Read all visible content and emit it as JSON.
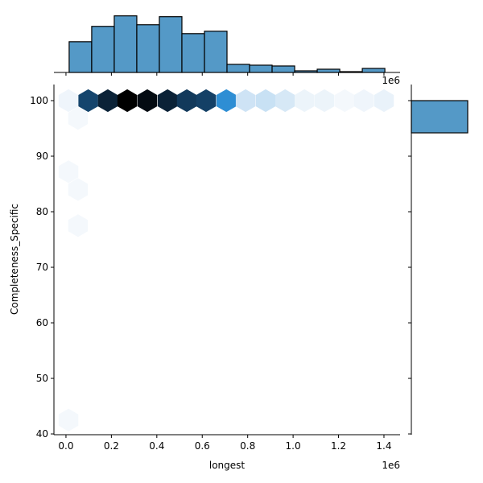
{
  "chart_data": {
    "type": "hexbin_jointplot",
    "xlabel": "longest",
    "ylabel": "Completeness_Specific",
    "x_offset_label": "1e6",
    "top_offset_label": "1e6",
    "xlim": [
      -0.053,
      1.471
    ],
    "ylim": [
      39.86,
      102.9
    ],
    "x_ticks": [
      "0.0",
      "0.2",
      "0.4",
      "0.6",
      "0.8",
      "1.0",
      "1.2",
      "1.4"
    ],
    "x_tick_values": [
      0.0,
      0.2,
      0.4,
      0.6,
      0.8,
      1.0,
      1.2,
      1.4
    ],
    "y_ticks": [
      "40",
      "50",
      "60",
      "70",
      "80",
      "90",
      "100"
    ],
    "y_tick_values": [
      40,
      50,
      60,
      70,
      80,
      90,
      100
    ],
    "grid": false,
    "hex_color": "#2b8cd3",
    "hexbins": [
      {
        "x": 0.011,
        "y": 100,
        "count": 3
      },
      {
        "x": 0.098,
        "y": 100,
        "count": 70
      },
      {
        "x": 0.184,
        "y": 100,
        "count": 85
      },
      {
        "x": 0.27,
        "y": 100,
        "count": 100
      },
      {
        "x": 0.358,
        "y": 100,
        "count": 95
      },
      {
        "x": 0.447,
        "y": 100,
        "count": 85
      },
      {
        "x": 0.532,
        "y": 100,
        "count": 75
      },
      {
        "x": 0.617,
        "y": 100,
        "count": 72
      },
      {
        "x": 0.706,
        "y": 100,
        "count": 45
      },
      {
        "x": 0.791,
        "y": 100,
        "count": 15
      },
      {
        "x": 0.879,
        "y": 100,
        "count": 17
      },
      {
        "x": 0.965,
        "y": 100,
        "count": 12
      },
      {
        "x": 1.05,
        "y": 100,
        "count": 4
      },
      {
        "x": 1.138,
        "y": 100,
        "count": 4
      },
      {
        "x": 1.227,
        "y": 100,
        "count": 1
      },
      {
        "x": 1.312,
        "y": 100,
        "count": 3
      },
      {
        "x": 1.4,
        "y": 100,
        "count": 5
      },
      {
        "x": 0.053,
        "y": 96.8,
        "count": 1
      },
      {
        "x": 0.011,
        "y": 87.2,
        "count": 1
      },
      {
        "x": 0.053,
        "y": 84.0,
        "count": 1
      },
      {
        "x": 0.053,
        "y": 77.5,
        "count": 1
      },
      {
        "x": 0.011,
        "y": 42.5,
        "count": 1
      }
    ],
    "top_histogram": {
      "bin_range": [
        0.014,
        1.404
      ],
      "counts": [
        38,
        57,
        70,
        59,
        69,
        48,
        51,
        10,
        9,
        8,
        2,
        4,
        1,
        5
      ],
      "color": "#5499c7"
    },
    "right_histogram": {
      "bins": [
        {
          "y0": 94.2,
          "y1": 100,
          "count": 1
        }
      ],
      "color": "#5499c7"
    }
  }
}
